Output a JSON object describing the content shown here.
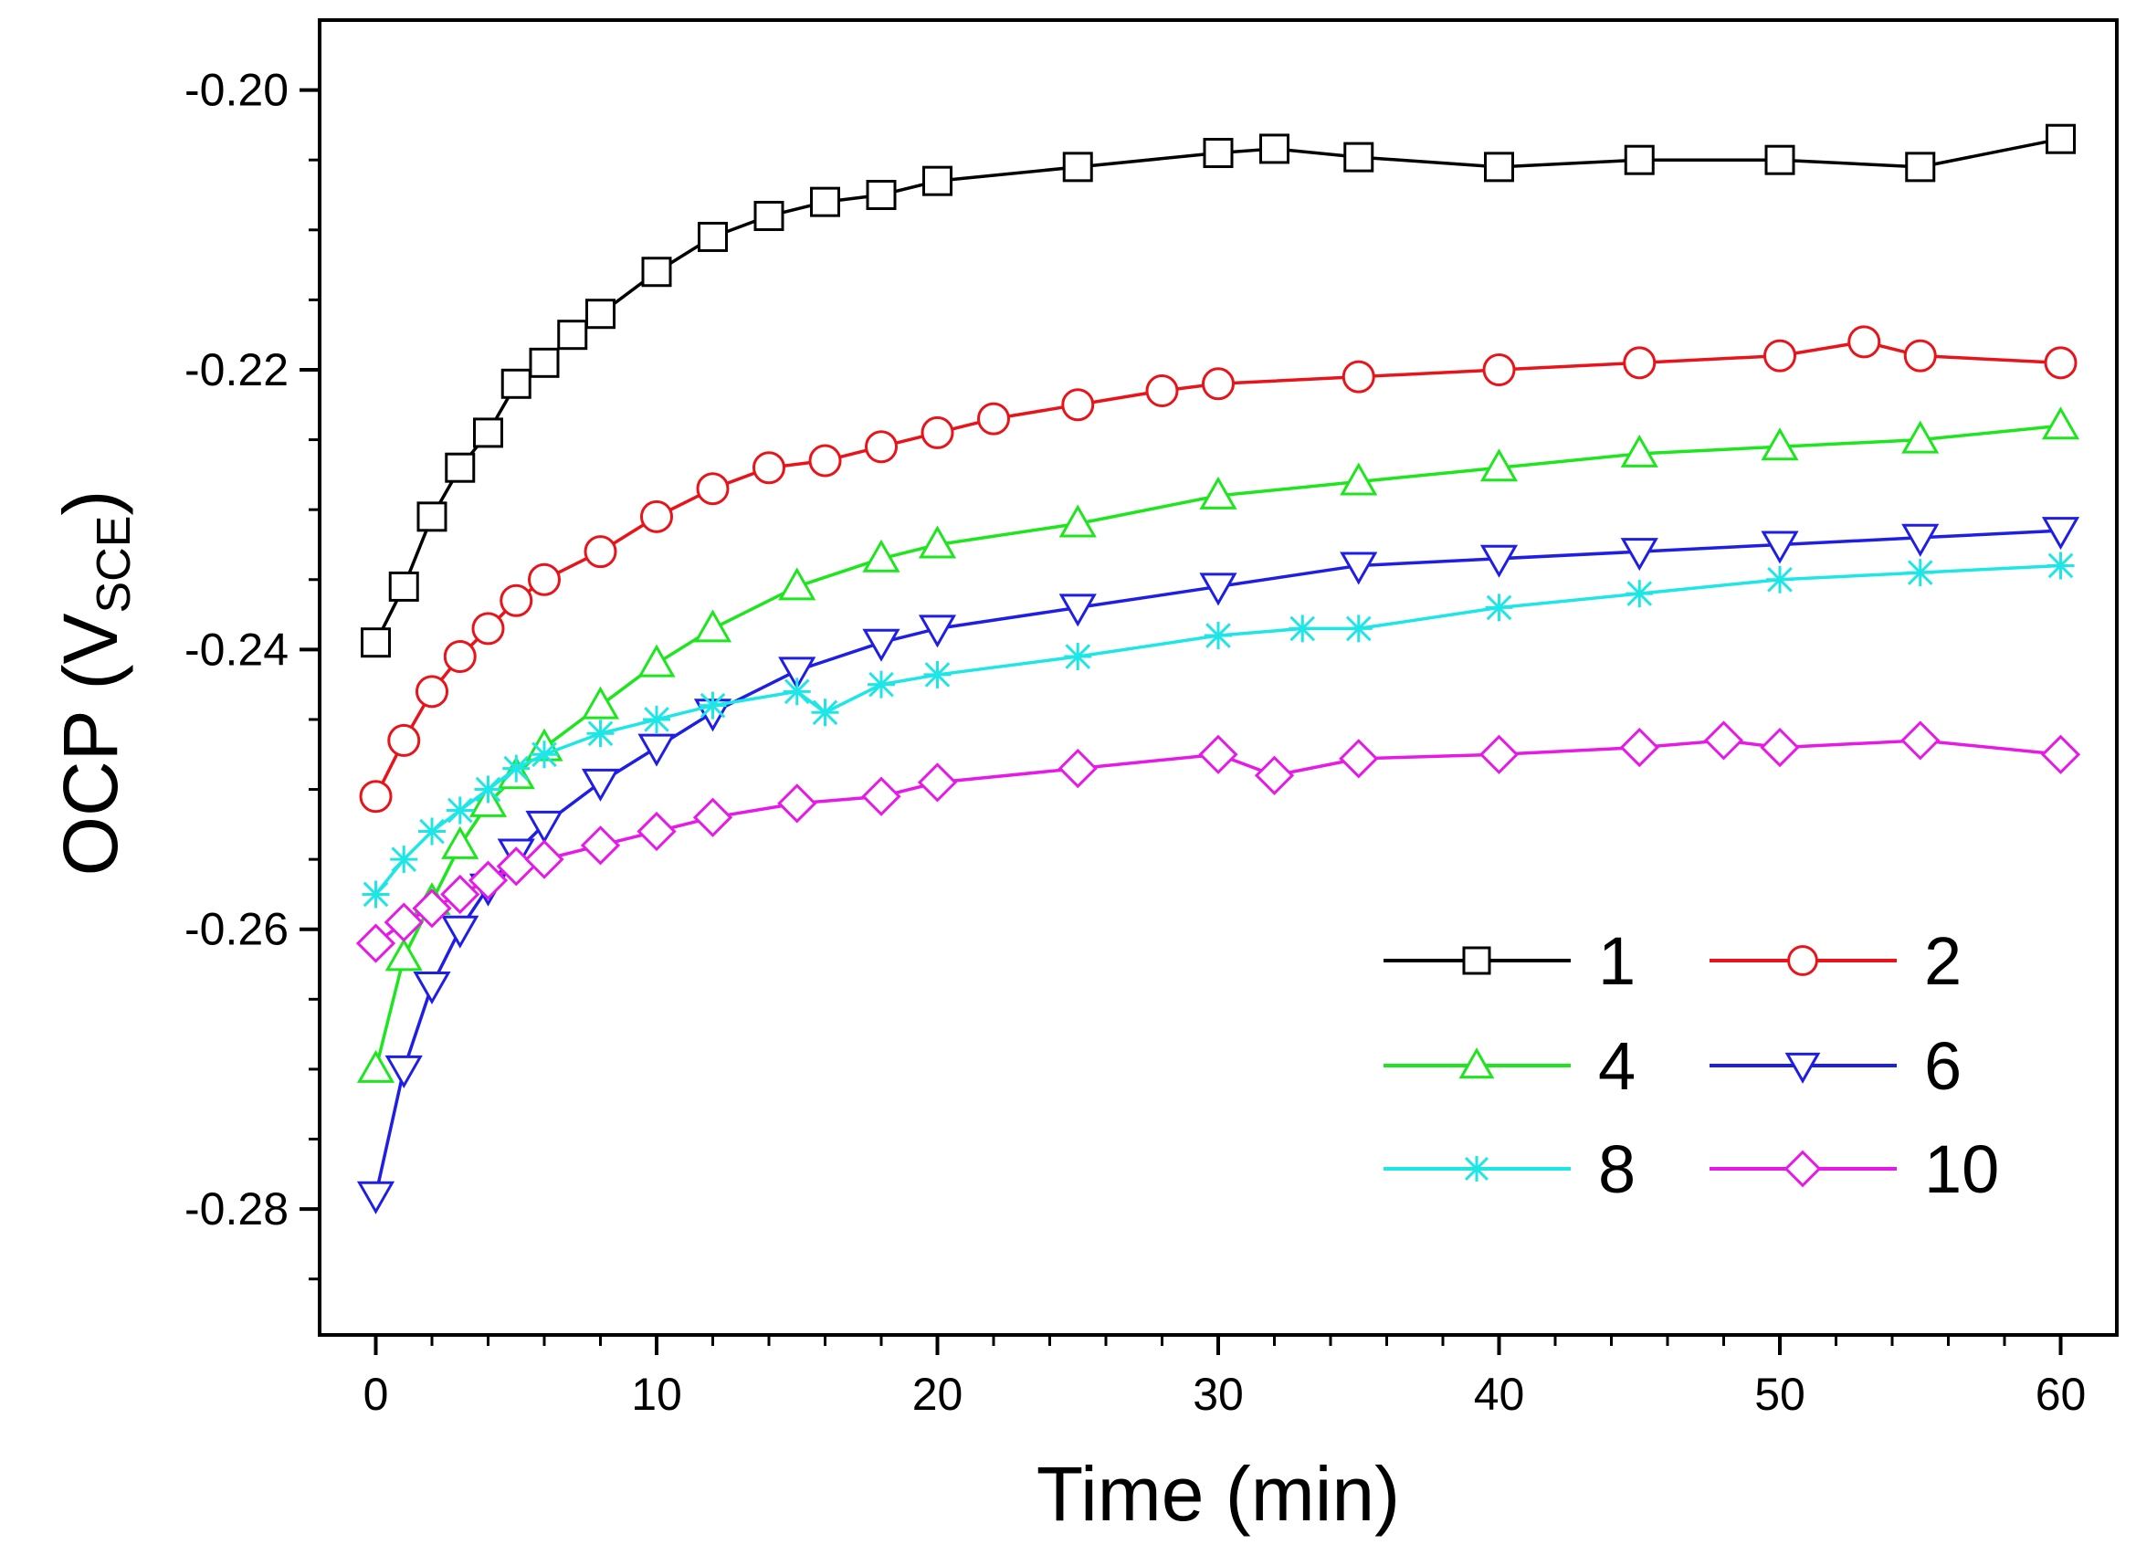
{
  "chart_data": {
    "type": "line",
    "xlabel": "Time (min)",
    "ylabel": "OCP (V",
    "ylabel_sub": "SCE",
    "ylabel_close": ")",
    "xlim": [
      -2,
      62
    ],
    "ylim": [
      -0.289,
      -0.195
    ],
    "xticks": [
      0,
      10,
      20,
      30,
      40,
      50,
      60
    ],
    "yticks": [
      -0.28,
      -0.26,
      -0.24,
      -0.22,
      -0.2
    ],
    "xtick_labels": [
      "0",
      "10",
      "20",
      "30",
      "40",
      "50",
      "60"
    ],
    "ytick_labels": [
      "-0.28",
      "-0.26",
      "-0.24",
      "-0.22",
      "-0.20"
    ],
    "legend_position": "bottom-right",
    "series": [
      {
        "name": "1",
        "color": "#000000",
        "marker": "square",
        "x": [
          0,
          1,
          2,
          3,
          4,
          5,
          6,
          7,
          8,
          10,
          12,
          14,
          16,
          18,
          20,
          25,
          30,
          32,
          35,
          40,
          45,
          50,
          55,
          60
        ],
        "y": [
          -0.2395,
          -0.2355,
          -0.2305,
          -0.227,
          -0.2245,
          -0.221,
          -0.2195,
          -0.2175,
          -0.216,
          -0.213,
          -0.2105,
          -0.209,
          -0.208,
          -0.2075,
          -0.2065,
          -0.2055,
          -0.2045,
          -0.2042,
          -0.2048,
          -0.2055,
          -0.205,
          -0.205,
          -0.2055,
          -0.2035
        ]
      },
      {
        "name": "2",
        "color": "#e8141a",
        "marker": "circle",
        "x": [
          0,
          1,
          2,
          3,
          4,
          5,
          6,
          8,
          10,
          12,
          14,
          16,
          18,
          20,
          22,
          25,
          28,
          30,
          35,
          40,
          45,
          50,
          53,
          55,
          60
        ],
        "y": [
          -0.2505,
          -0.2465,
          -0.243,
          -0.2405,
          -0.2385,
          -0.2365,
          -0.235,
          -0.233,
          -0.2305,
          -0.2285,
          -0.227,
          -0.2265,
          -0.2255,
          -0.2245,
          -0.2235,
          -0.2225,
          -0.2215,
          -0.221,
          -0.2205,
          -0.22,
          -0.2195,
          -0.219,
          -0.218,
          -0.219,
          -0.2195
        ]
      },
      {
        "name": "4",
        "color": "#1ee61e",
        "marker": "triangle-up",
        "x": [
          0,
          1,
          2,
          3,
          4,
          5,
          6,
          8,
          10,
          12,
          15,
          18,
          20,
          25,
          30,
          35,
          40,
          45,
          50,
          55,
          60
        ],
        "y": [
          -0.27,
          -0.262,
          -0.258,
          -0.254,
          -0.251,
          -0.249,
          -0.247,
          -0.244,
          -0.241,
          -0.2385,
          -0.2355,
          -0.2335,
          -0.2325,
          -0.231,
          -0.229,
          -0.228,
          -0.227,
          -0.226,
          -0.2255,
          -0.225,
          -0.224
        ]
      },
      {
        "name": "6",
        "color": "#1e1ee6",
        "marker": "triangle-down",
        "x": [
          0,
          1,
          2,
          3,
          4,
          5,
          6,
          8,
          10,
          12,
          15,
          18,
          20,
          25,
          30,
          35,
          40,
          45,
          50,
          55,
          60
        ],
        "y": [
          -0.279,
          -0.27,
          -0.264,
          -0.26,
          -0.257,
          -0.2545,
          -0.2525,
          -0.2495,
          -0.247,
          -0.2445,
          -0.2415,
          -0.2395,
          -0.2385,
          -0.237,
          -0.2355,
          -0.234,
          -0.2335,
          -0.233,
          -0.2325,
          -0.232,
          -0.2315
        ]
      },
      {
        "name": "8",
        "color": "#1ee6e6",
        "marker": "star",
        "x": [
          0,
          1,
          2,
          3,
          4,
          5,
          6,
          8,
          10,
          12,
          15,
          16,
          18,
          20,
          25,
          30,
          33,
          35,
          40,
          45,
          50,
          55,
          60
        ],
        "y": [
          -0.2575,
          -0.255,
          -0.253,
          -0.2515,
          -0.25,
          -0.2485,
          -0.2475,
          -0.246,
          -0.245,
          -0.244,
          -0.243,
          -0.2445,
          -0.2425,
          -0.2418,
          -0.2405,
          -0.239,
          -0.2385,
          -0.2385,
          -0.237,
          -0.236,
          -0.235,
          -0.2345,
          -0.234
        ]
      },
      {
        "name": "10",
        "color": "#e619e6",
        "marker": "diamond",
        "x": [
          0,
          1,
          2,
          3,
          4,
          5,
          6,
          8,
          10,
          12,
          15,
          18,
          20,
          25,
          30,
          32,
          35,
          40,
          45,
          48,
          50,
          55,
          60
        ],
        "y": [
          -0.261,
          -0.2595,
          -0.2585,
          -0.2575,
          -0.2565,
          -0.2555,
          -0.255,
          -0.254,
          -0.253,
          -0.252,
          -0.251,
          -0.2505,
          -0.2495,
          -0.2485,
          -0.2475,
          -0.249,
          -0.2478,
          -0.2475,
          -0.247,
          -0.2465,
          -0.247,
          -0.2465,
          -0.2475
        ]
      }
    ]
  }
}
